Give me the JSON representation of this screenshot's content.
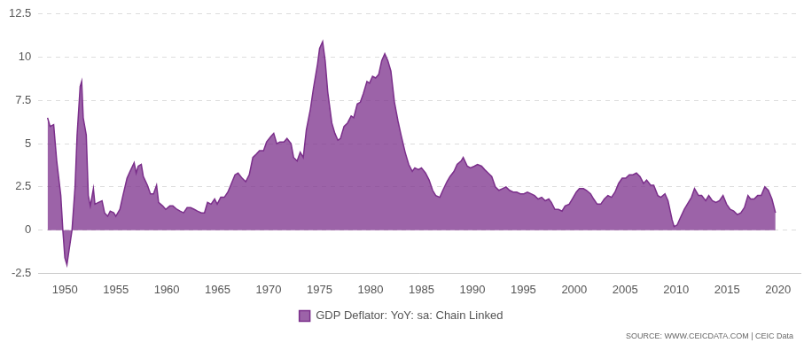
{
  "chart_data": {
    "type": "area",
    "source": "SOURCE: WWW.CEICDATA.COM | CEIC Data",
    "x": [
      1948.3,
      1948.55,
      1948.9,
      1949.2,
      1949.6,
      1949.8,
      1950.0,
      1950.2,
      1950.4,
      1950.7,
      1951.0,
      1951.2,
      1951.5,
      1951.65,
      1951.8,
      1952.1,
      1952.3,
      1952.5,
      1952.8,
      1952.95,
      1953.3,
      1953.65,
      1953.9,
      1954.2,
      1954.45,
      1954.8,
      1955.0,
      1955.4,
      1955.7,
      1956.1,
      1956.4,
      1956.8,
      1957.0,
      1957.2,
      1957.5,
      1957.7,
      1958.1,
      1958.4,
      1958.7,
      1959.0,
      1959.2,
      1959.6,
      1959.9,
      1960.3,
      1960.6,
      1961.0,
      1961.3,
      1961.65,
      1962.0,
      1962.35,
      1962.7,
      1963.0,
      1963.4,
      1963.7,
      1964.0,
      1964.35,
      1964.7,
      1964.95,
      1965.3,
      1965.65,
      1966.0,
      1966.35,
      1966.7,
      1967.0,
      1967.4,
      1967.75,
      1968.1,
      1968.45,
      1968.8,
      1969.1,
      1969.5,
      1969.8,
      1970.2,
      1970.5,
      1970.8,
      1971.1,
      1971.5,
      1971.8,
      1972.2,
      1972.45,
      1972.8,
      1973.1,
      1973.4,
      1973.7,
      1974.1,
      1974.4,
      1974.8,
      1975.0,
      1975.3,
      1975.55,
      1975.8,
      1976.2,
      1976.5,
      1976.8,
      1977.05,
      1977.4,
      1977.75,
      1978.1,
      1978.35,
      1978.7,
      1979.0,
      1979.3,
      1979.65,
      1979.9,
      1980.2,
      1980.5,
      1980.8,
      1981.1,
      1981.4,
      1981.7,
      1982.0,
      1982.35,
      1982.7,
      1983.0,
      1983.4,
      1983.75,
      1984.1,
      1984.35,
      1984.7,
      1985.0,
      1985.4,
      1985.75,
      1986.1,
      1986.4,
      1986.8,
      1987.1,
      1987.5,
      1987.8,
      1988.2,
      1988.5,
      1988.9,
      1989.1,
      1989.5,
      1989.8,
      1990.2,
      1990.5,
      1990.9,
      1991.2,
      1991.55,
      1991.9,
      1992.25,
      1992.6,
      1992.95,
      1993.3,
      1993.65,
      1994.0,
      1994.35,
      1994.7,
      1995.05,
      1995.4,
      1995.75,
      1996.1,
      1996.45,
      1996.8,
      1997.15,
      1997.5,
      1997.75,
      1998.1,
      1998.45,
      1998.8,
      1999.1,
      1999.5,
      1999.8,
      2000.2,
      2000.5,
      2000.9,
      2001.2,
      2001.6,
      2001.9,
      2002.25,
      2002.6,
      2002.95,
      2003.3,
      2003.65,
      2004.0,
      2004.35,
      2004.7,
      2005.05,
      2005.4,
      2005.75,
      2006.1,
      2006.45,
      2006.8,
      2007.1,
      2007.5,
      2007.8,
      2008.2,
      2008.5,
      2008.9,
      2009.2,
      2009.6,
      2009.8,
      2010.1,
      2010.4,
      2010.8,
      2011.1,
      2011.5,
      2011.8,
      2012.2,
      2012.5,
      2012.9,
      2013.2,
      2013.55,
      2013.9,
      2014.25,
      2014.6,
      2014.95,
      2015.3,
      2015.65,
      2016.0,
      2016.35,
      2016.7,
      2017.05,
      2017.3,
      2017.65,
      2018.0,
      2018.35,
      2018.7,
      2019.05,
      2019.4,
      2019.75
    ],
    "series": [
      {
        "name": "GDP Deflator: YoY: sa: Chain Linked",
        "color": "#7b2f8b",
        "values": [
          6.5,
          6.0,
          6.1,
          4.0,
          2.0,
          0.0,
          -1.6,
          -2.0,
          -1.2,
          0.0,
          2.5,
          5.5,
          8.3,
          8.6,
          6.5,
          5.5,
          2.0,
          1.4,
          2.4,
          1.5,
          1.6,
          1.7,
          1.0,
          0.8,
          1.1,
          1.0,
          0.8,
          1.2,
          2.0,
          3.0,
          3.4,
          3.9,
          3.3,
          3.7,
          3.8,
          3.1,
          2.6,
          2.1,
          2.1,
          2.6,
          1.6,
          1.4,
          1.2,
          1.4,
          1.4,
          1.2,
          1.1,
          1.0,
          1.3,
          1.3,
          1.2,
          1.1,
          1.0,
          1.0,
          1.6,
          1.5,
          1.8,
          1.5,
          1.9,
          1.9,
          2.2,
          2.7,
          3.2,
          3.3,
          3.0,
          2.8,
          3.2,
          4.2,
          4.4,
          4.6,
          4.6,
          5.1,
          5.4,
          5.6,
          5.0,
          5.1,
          5.1,
          5.3,
          5.0,
          4.2,
          4.0,
          4.5,
          4.2,
          5.8,
          7.0,
          8.2,
          9.6,
          10.5,
          10.9,
          9.8,
          8.0,
          6.2,
          5.6,
          5.2,
          5.3,
          6.0,
          6.2,
          6.6,
          6.5,
          7.3,
          7.4,
          7.9,
          8.6,
          8.5,
          8.9,
          8.8,
          9.0,
          9.8,
          10.2,
          9.8,
          9.2,
          7.4,
          6.3,
          5.5,
          4.5,
          3.8,
          3.4,
          3.6,
          3.5,
          3.6,
          3.3,
          2.9,
          2.3,
          2.0,
          1.9,
          2.3,
          2.8,
          3.1,
          3.4,
          3.8,
          4.0,
          4.2,
          3.7,
          3.6,
          3.7,
          3.8,
          3.7,
          3.5,
          3.3,
          3.1,
          2.5,
          2.3,
          2.4,
          2.5,
          2.3,
          2.2,
          2.2,
          2.1,
          2.1,
          2.2,
          2.1,
          2.0,
          1.8,
          1.9,
          1.7,
          1.8,
          1.6,
          1.2,
          1.2,
          1.1,
          1.4,
          1.5,
          1.8,
          2.2,
          2.4,
          2.4,
          2.3,
          2.1,
          1.8,
          1.5,
          1.5,
          1.8,
          2.0,
          1.9,
          2.2,
          2.7,
          3.0,
          3.0,
          3.2,
          3.2,
          3.3,
          3.1,
          2.7,
          2.9,
          2.6,
          2.6,
          2.0,
          1.9,
          2.1,
          1.7,
          0.6,
          0.2,
          0.3,
          0.7,
          1.2,
          1.5,
          1.9,
          2.4,
          2.0,
          2.0,
          1.7,
          2.0,
          1.7,
          1.6,
          1.7,
          2.0,
          1.5,
          1.2,
          1.1,
          0.9,
          1.0,
          1.3,
          2.0,
          1.8,
          1.8,
          2.0,
          2.0,
          2.5,
          2.3,
          1.8,
          1.0
        ]
      }
    ],
    "xlim": [
      1947.4,
      2022.2
    ],
    "xticks": [
      1950,
      1955,
      1960,
      1965,
      1970,
      1975,
      1980,
      1985,
      1990,
      1995,
      2000,
      2005,
      2010,
      2015,
      2020
    ],
    "ylim": [
      -2.5,
      12.5
    ],
    "yticks": [
      -2.5,
      0,
      2.5,
      5,
      7.5,
      10,
      12.5
    ],
    "grid": true,
    "legend": "bottom"
  }
}
